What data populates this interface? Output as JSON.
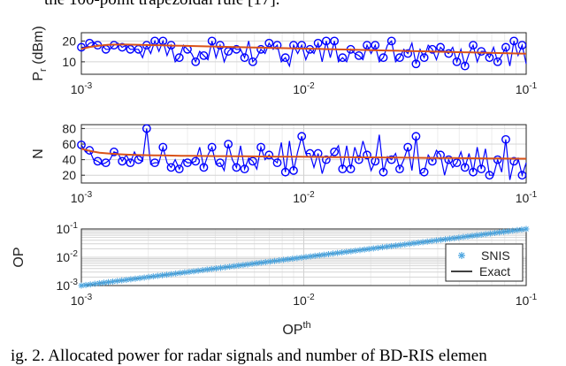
{
  "caption_top": "the 100-point trapezoidal rule [17].",
  "caption_bottom": "ig. 2.   Allocated power for radar signals and number of BD-RIS elemen",
  "colors": {
    "blue": "#0000ff",
    "orange": "#d95319",
    "snis": "#4da6e0",
    "exact": "#000000",
    "grid": "#d9d9d9",
    "axis": "#262626"
  },
  "chart_data": [
    {
      "type": "line",
      "ylabel": "P_r (dBm)",
      "ylabel_main": "P",
      "ylabel_sub": "r",
      "ylabel_unit": "(dBm)",
      "xscale": "log",
      "xlim": [
        0.001,
        0.1
      ],
      "ylim": [
        4,
        24
      ],
      "yticks": [
        10,
        20
      ],
      "ytick_labels": [
        "10",
        "20"
      ],
      "xtick_labels": [
        {
          "base": "10",
          "exp": "-3"
        },
        {
          "base": "10",
          "exp": "-2"
        },
        {
          "base": "10",
          "exp": "-1"
        }
      ],
      "x_range": [
        0.001,
        0.1
      ],
      "grid": true,
      "series": [
        {
          "style": "line-circle",
          "color": "blue",
          "values": [
            17,
            17,
            19,
            19.5,
            18,
            18,
            16,
            16,
            18,
            19,
            17,
            18,
            16,
            16,
            16,
            12,
            18,
            14,
            20,
            15,
            20,
            13,
            18,
            10,
            12,
            18,
            16,
            14,
            10,
            15,
            13,
            11,
            20,
            12,
            18,
            10,
            15,
            17,
            16,
            16,
            12,
            20,
            10,
            12,
            16,
            14,
            19,
            16,
            18,
            10,
            12,
            8,
            18,
            14,
            18,
            11,
            16,
            14,
            19,
            10,
            20,
            12,
            20,
            10,
            12,
            10,
            16,
            14,
            13,
            11,
            18,
            14,
            18,
            10,
            12,
            18,
            20,
            10,
            12,
            16,
            14,
            19,
            9,
            16,
            12,
            18,
            16,
            11,
            17,
            15,
            14,
            17,
            10,
            16,
            8,
            14,
            18,
            10,
            15,
            15,
            12,
            17,
            10,
            13,
            17,
            8,
            20,
            13,
            18,
            9
          ]
        },
        {
          "style": "line",
          "color": "orange",
          "values": [
            16.2,
            17.2,
            17.8,
            18.2,
            18.3,
            18.3,
            18.2,
            18.1,
            18,
            17.9,
            17.8,
            17.7,
            17.6,
            17.5,
            17.4,
            17.3,
            17.2,
            17.1,
            17,
            16.9,
            16.8,
            16.7,
            16.6,
            16.5,
            16.4,
            16.3,
            16.2,
            16.1,
            16,
            15.9,
            15.8,
            15.7,
            15.6,
            15.5,
            15.4,
            15.3,
            15.2,
            15.1,
            15,
            14.9,
            14.8,
            14.7,
            14.6,
            14.5,
            14.4,
            14.3,
            14.2,
            14.1,
            14,
            13.9
          ]
        }
      ]
    },
    {
      "type": "line",
      "ylabel": "N",
      "xscale": "log",
      "xlim": [
        0.001,
        0.1
      ],
      "ylim": [
        10,
        85
      ],
      "yticks": [
        20,
        40,
        60,
        80
      ],
      "ytick_labels": [
        "20",
        "40",
        "60",
        "80"
      ],
      "xtick_labels": [
        {
          "base": "10",
          "exp": "-3"
        },
        {
          "base": "10",
          "exp": "-2"
        },
        {
          "base": "10",
          "exp": "-1"
        }
      ],
      "x_range": [
        0.001,
        0.1
      ],
      "grid": true,
      "series": [
        {
          "style": "line-circle",
          "color": "blue",
          "values": [
            59,
            50,
            52,
            40,
            38,
            34,
            36,
            40,
            50,
            48,
            38,
            46,
            36,
            50,
            40,
            38,
            80,
            34,
            36,
            36,
            56,
            36,
            30,
            40,
            28,
            40,
            36,
            36,
            38,
            56,
            30,
            46,
            56,
            34,
            36,
            26,
            60,
            40,
            30,
            58,
            28,
            42,
            38,
            28,
            56,
            40,
            46,
            40,
            36,
            62,
            24,
            64,
            26,
            50,
            70,
            48,
            48,
            30,
            48,
            22,
            40,
            44,
            50,
            58,
            28,
            58,
            28,
            56,
            40,
            64,
            46,
            26,
            38,
            72,
            24,
            44,
            40,
            48,
            28,
            40,
            56,
            26,
            70,
            22,
            24,
            46,
            38,
            52,
            46,
            20,
            40,
            30,
            36,
            50,
            30,
            48,
            24,
            56,
            28,
            54,
            20,
            20,
            40,
            24,
            66,
            14,
            38,
            42,
            20,
            36
          ]
        },
        {
          "style": "line",
          "color": "orange",
          "values": [
            54,
            51,
            49,
            48,
            47,
            46.5,
            46,
            45.8,
            45.6,
            45.4,
            45.2,
            45,
            44.9,
            44.8,
            44.7,
            44.6,
            44.5,
            44.4,
            44.3,
            44.2,
            44.1,
            44,
            43.9,
            43.8,
            43.7,
            43.6,
            43.5,
            43.4,
            43.3,
            43.2,
            43.1,
            43,
            42.9,
            42.8,
            42.7,
            42.6,
            42.5,
            42.4,
            42.3,
            42.2,
            42.1,
            42,
            41.9,
            41.8,
            41.7,
            41.6,
            41.5,
            41.4,
            41.3,
            41.2
          ]
        }
      ]
    },
    {
      "type": "scatter",
      "ylabel": "OP",
      "xlabel": "OP",
      "xlabel_sup": "th",
      "xscale": "log",
      "yscale": "log",
      "xlim": [
        0.001,
        0.1
      ],
      "ylim": [
        0.001,
        0.1
      ],
      "ytick_labels": [
        {
          "base": "10",
          "exp": "-1"
        },
        {
          "base": "10",
          "exp": "-2"
        },
        {
          "base": "10",
          "exp": "-3"
        }
      ],
      "xtick_labels": [
        {
          "base": "10",
          "exp": "-3"
        },
        {
          "base": "10",
          "exp": "-2"
        },
        {
          "base": "10",
          "exp": "-1"
        }
      ],
      "grid": true,
      "legend_position": "bottom-right",
      "series": [
        {
          "name": "SNIS",
          "style": "asterisk",
          "color": "snis",
          "relation": "y = x",
          "n_points": 100
        },
        {
          "name": "Exact",
          "style": "line",
          "color": "exact",
          "relation": "y = x"
        }
      ]
    }
  ]
}
